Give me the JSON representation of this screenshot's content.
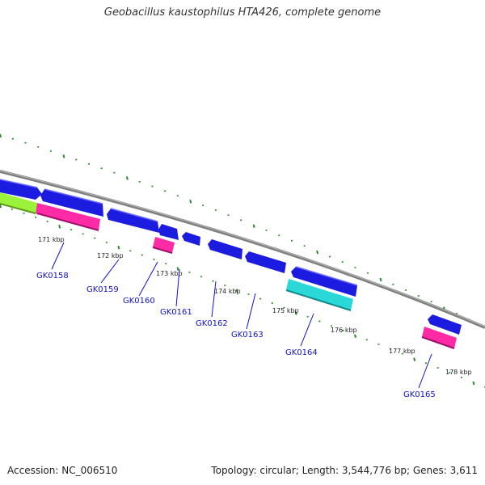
{
  "title": "Geobacillus kaustophilus HTA426, complete genome",
  "accession": "Accession: NC_006510",
  "topology": "Topology: circular; Length: 3,544,776 bp; Genes: 3,611",
  "colors": {
    "backbone": "#808080",
    "forward_gene": "#1c1ce0",
    "reverse_gene": "#ff2aa6",
    "cyan_feature": "#2ad8d8",
    "green_feature": "#9cf23a",
    "tick": "#2a8a2a",
    "label": "#1010c8"
  },
  "ticks": [
    {
      "label": "171 kbp"
    },
    {
      "label": "172 kbp"
    },
    {
      "label": "173 kbp"
    },
    {
      "label": "174 kbp"
    },
    {
      "label": "175 kbp"
    },
    {
      "label": "176 kbp"
    },
    {
      "label": "177 kbp"
    },
    {
      "label": "178 kbp"
    }
  ],
  "genes": [
    {
      "label": "GK0158"
    },
    {
      "label": "GK0159"
    },
    {
      "label": "GK0160"
    },
    {
      "label": "GK0161"
    },
    {
      "label": "GK0162"
    },
    {
      "label": "GK0163"
    },
    {
      "label": "GK0164"
    },
    {
      "label": "GK0165"
    }
  ]
}
